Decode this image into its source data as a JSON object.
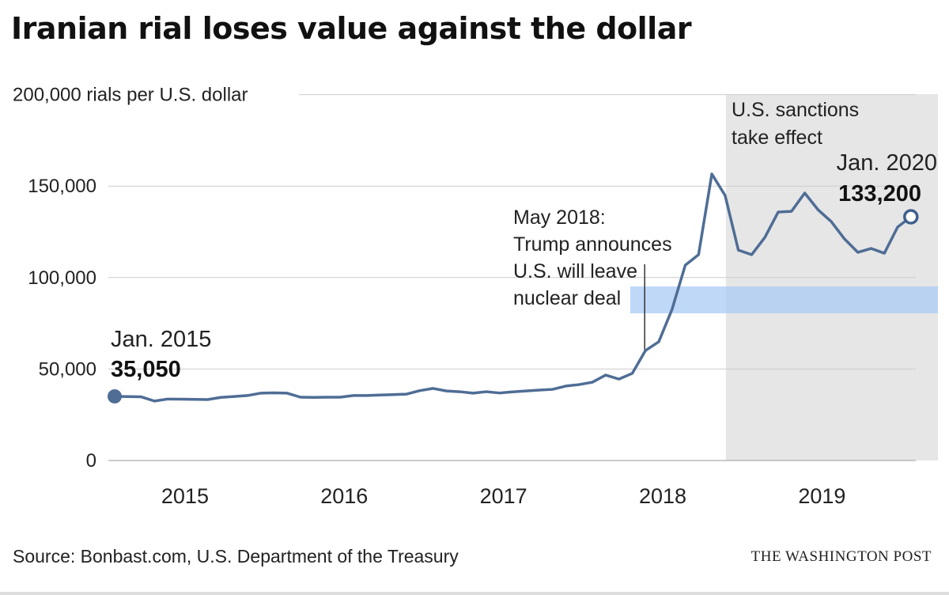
{
  "title": "Iranian rial loses value against the dollar",
  "source": "Source: Bonbast.com, U.S. Department of the Treasury",
  "credit": "THE WASHINGTON POST",
  "colors": {
    "line": "#4f6d95",
    "shade": "#e6e6e6",
    "grid": "#cccccc",
    "highlight": "#a9cbf5"
  },
  "chart_data": {
    "type": "line",
    "title": "Iranian rial loses value against the dollar",
    "ylabel": "rials per U.S. dollar",
    "ylim": [
      0,
      200000
    ],
    "y_ticks": [
      {
        "value": 0,
        "label": "0"
      },
      {
        "value": 50000,
        "label": "50,000"
      },
      {
        "value": 100000,
        "label": "100,000"
      },
      {
        "value": 150000,
        "label": "150,000"
      },
      {
        "value": 200000,
        "label": "200,000 rials per U.S. dollar"
      }
    ],
    "x_ticks": [
      "2015",
      "2016",
      "2017",
      "2018",
      "2019"
    ],
    "grid": true,
    "x_start": "2015-01",
    "x_end": "2020-01",
    "series": [
      {
        "frequency": "monthly",
        "values": [
          35050,
          34900,
          34800,
          32500,
          33600,
          33500,
          33400,
          33300,
          34500,
          35000,
          35500,
          36800,
          37000,
          36800,
          34600,
          34500,
          34600,
          34600,
          35500,
          35500,
          35800,
          36000,
          36300,
          38200,
          39400,
          38000,
          37600,
          36800,
          37600,
          36900,
          37500,
          38000,
          38500,
          38900,
          40700,
          41500,
          42800,
          46700,
          44500,
          47600,
          60100,
          64900,
          82600,
          106800,
          112500,
          156600,
          144900,
          115000,
          112500,
          122000,
          135800,
          136200,
          146200,
          137100,
          130600,
          121100,
          113800,
          115900,
          113300,
          127600,
          133200
        ]
      }
    ],
    "shaded_region": {
      "from": "2018-11",
      "to": "2020-01",
      "label": [
        "U.S. sanctions",
        "take effect"
      ]
    },
    "annotations": [
      {
        "date": "2018-05",
        "lines": [
          "May 2018:",
          "Trump announces",
          "U.S. will leave",
          "nuclear deal"
        ]
      },
      {
        "date": "2015-01",
        "label": "Jan. 2015",
        "value_label": "35,050"
      },
      {
        "date": "2020-01",
        "label": "Jan. 2020",
        "value_label": "133,200"
      }
    ]
  }
}
